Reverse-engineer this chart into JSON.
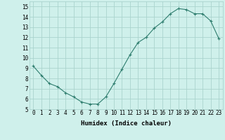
{
  "x": [
    0,
    1,
    2,
    3,
    4,
    5,
    6,
    7,
    8,
    9,
    10,
    11,
    12,
    13,
    14,
    15,
    16,
    17,
    18,
    19,
    20,
    21,
    22,
    23
  ],
  "y": [
    9.2,
    8.3,
    7.5,
    7.2,
    6.6,
    6.2,
    5.7,
    5.5,
    5.5,
    6.2,
    7.5,
    8.9,
    10.3,
    11.5,
    12.0,
    12.9,
    13.5,
    14.3,
    14.8,
    14.7,
    14.3,
    14.3,
    13.6,
    11.9
  ],
  "line_color": "#2e7d6e",
  "marker": "+",
  "marker_size": 3,
  "marker_lw": 0.8,
  "line_width": 0.8,
  "bg_color": "#cff0eb",
  "grid_color": "#aad4ce",
  "xlabel": "Humidex (Indice chaleur)",
  "xlim": [
    -0.5,
    23.5
  ],
  "ylim": [
    5,
    15.5
  ],
  "yticks": [
    5,
    6,
    7,
    8,
    9,
    10,
    11,
    12,
    13,
    14,
    15
  ],
  "xticks": [
    0,
    1,
    2,
    3,
    4,
    5,
    6,
    7,
    8,
    9,
    10,
    11,
    12,
    13,
    14,
    15,
    16,
    17,
    18,
    19,
    20,
    21,
    22,
    23
  ],
  "label_fontsize": 6.5,
  "tick_fontsize": 5.5
}
